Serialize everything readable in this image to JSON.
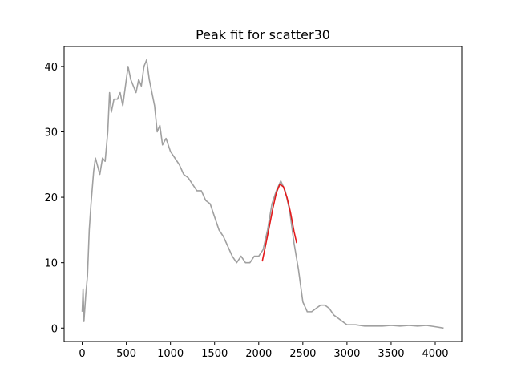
{
  "chart_data": {
    "type": "line",
    "title": "Peak fit for scatter30",
    "series": [
      {
        "color": "#a0a0a0",
        "x": [
          0,
          10,
          20,
          40,
          60,
          80,
          100,
          130,
          150,
          170,
          200,
          230,
          260,
          290,
          310,
          330,
          360,
          400,
          430,
          460,
          500,
          520,
          550,
          580,
          610,
          640,
          670,
          700,
          730,
          760,
          790,
          820,
          850,
          880,
          910,
          950,
          1000,
          1050,
          1100,
          1150,
          1200,
          1250,
          1300,
          1350,
          1400,
          1450,
          1500,
          1550,
          1600,
          1650,
          1700,
          1750,
          1800,
          1850,
          1900,
          1950,
          2000,
          2050,
          2100,
          2150,
          2200,
          2250,
          2300,
          2350,
          2400,
          2450,
          2500,
          2550,
          2600,
          2650,
          2700,
          2750,
          2800,
          2850,
          2900,
          2950,
          3000,
          3050,
          3100,
          3200,
          3300,
          3400,
          3500,
          3600,
          3700,
          3800,
          3900,
          4000,
          4095
        ],
        "values": [
          2.5,
          6,
          1,
          5,
          8,
          15,
          19,
          24,
          26,
          25,
          23.5,
          26,
          25.5,
          30,
          36,
          33,
          35,
          35,
          36,
          34,
          38,
          40,
          38,
          37,
          36,
          38,
          37,
          40,
          41,
          38,
          36,
          34,
          30,
          31,
          28,
          29,
          27,
          26,
          25,
          23.5,
          23,
          22,
          21,
          21,
          19.5,
          19,
          17,
          15,
          14,
          12.5,
          11,
          10,
          11,
          10,
          10,
          11,
          11,
          12,
          15,
          19,
          21,
          22.5,
          21,
          18,
          13,
          9,
          4,
          2.5,
          2.5,
          3,
          3.5,
          3.5,
          3,
          2,
          1.5,
          1,
          0.5,
          0.5,
          0.5,
          0.3,
          0.3,
          0.3,
          0.4,
          0.3,
          0.4,
          0.3,
          0.4,
          0.2,
          0
        ]
      },
      {
        "color": "#e31a1c",
        "x": [
          2040,
          2080,
          2120,
          2160,
          2200,
          2240,
          2280,
          2320,
          2360,
          2400,
          2430
        ],
        "values": [
          10.2,
          12.8,
          15.5,
          18.3,
          20.7,
          22,
          21.6,
          20,
          17.7,
          14.8,
          13
        ]
      }
    ],
    "xlim": [
      -204.75,
      4299.75
    ],
    "xticks": [
      0,
      500,
      1000,
      1500,
      2000,
      2500,
      3000,
      3500,
      4000
    ],
    "ylim": [
      -2.05,
      43.05
    ],
    "yticks": [
      0,
      10,
      20,
      30,
      40
    ]
  }
}
